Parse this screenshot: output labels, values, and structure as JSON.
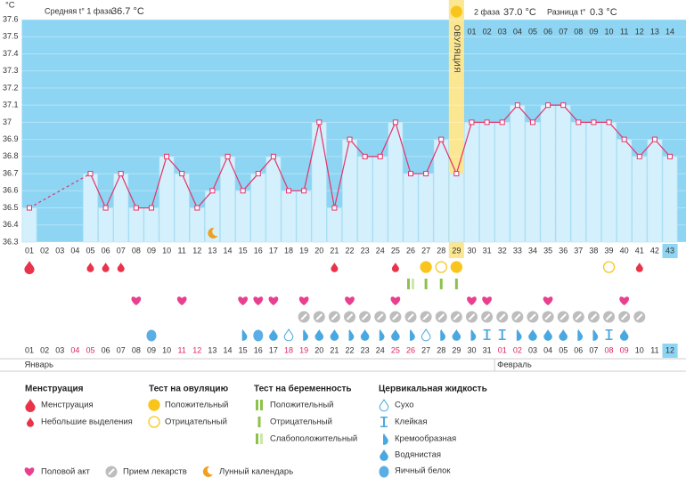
{
  "header": {
    "unit": "°C",
    "phase1_label": "Средняя t° 1 фаза",
    "phase1_value": "36.7 °C",
    "phase2_label": "2 фаза",
    "phase2_value": "37.0 °C",
    "diff_label": "Разница t°",
    "diff_value": "0.3 °C",
    "ovulation_label": "ОВУЛЯЦИЯ"
  },
  "chart_data": {
    "type": "line",
    "color": "#e5336a",
    "categories": [
      "01",
      "02",
      "03",
      "04",
      "05",
      "06",
      "07",
      "08",
      "09",
      "10",
      "11",
      "12",
      "13",
      "14",
      "15",
      "16",
      "17",
      "18",
      "19",
      "20",
      "21",
      "22",
      "23",
      "24",
      "25",
      "26",
      "27",
      "28",
      "29",
      "30",
      "31",
      "32",
      "33",
      "34",
      "35",
      "36",
      "37",
      "38",
      "39",
      "40",
      "41",
      "42",
      "43"
    ],
    "values": [
      36.5,
      null,
      null,
      null,
      36.7,
      36.5,
      36.7,
      36.5,
      36.5,
      36.8,
      36.7,
      36.5,
      36.6,
      36.8,
      36.6,
      36.7,
      36.8,
      36.6,
      36.6,
      37.0,
      36.5,
      36.9,
      36.8,
      36.8,
      37.0,
      36.7,
      36.7,
      36.9,
      36.7,
      37.0,
      37.0,
      37.0,
      37.1,
      37.0,
      37.1,
      37.1,
      37.0,
      37.0,
      37.0,
      36.9,
      36.8,
      36.9,
      36.8
    ],
    "ylim": [
      36.3,
      37.6
    ],
    "yticks": [
      37.6,
      37.5,
      37.4,
      37.3,
      37.2,
      37.1,
      37,
      36.9,
      36.8,
      36.7,
      36.6,
      36.5,
      36.4,
      36.3
    ],
    "grid": true
  },
  "ovulation_day": 29,
  "today": 43,
  "phase2_days": [
    "01",
    "02",
    "03",
    "04",
    "05",
    "06",
    "07",
    "08",
    "09",
    "10",
    "11",
    "12",
    "13",
    "14"
  ],
  "calendar": {
    "dates": [
      "01",
      "02",
      "03",
      "04",
      "05",
      "06",
      "07",
      "08",
      "09",
      "10",
      "11",
      "12",
      "13",
      "14",
      "15",
      "16",
      "17",
      "18",
      "19",
      "20",
      "21",
      "22",
      "23",
      "24",
      "25",
      "26",
      "27",
      "28",
      "29",
      "30",
      "31",
      "01",
      "02",
      "03",
      "04",
      "05",
      "06",
      "07",
      "08",
      "09",
      "10",
      "11",
      "12"
    ],
    "weekends": [
      3,
      4,
      10,
      11,
      17,
      18,
      24,
      25,
      31,
      32,
      38,
      39
    ],
    "weekend_color": "#e0245e",
    "months": [
      {
        "label": "Январь",
        "start": 1
      },
      {
        "label": "Февраль",
        "start": 32
      }
    ]
  },
  "markers": {
    "menstruation": [
      1
    ],
    "spotting": [
      5,
      6,
      7,
      21,
      25,
      41
    ],
    "ovulation_positive": [
      27,
      29
    ],
    "ovulation_negative": [
      28,
      39
    ],
    "pregnancy_positive": [],
    "pregnancy_negative": [
      27,
      28,
      29
    ],
    "pregnancy_weak": [
      26
    ],
    "sex": [
      8,
      11,
      15,
      16,
      17,
      19,
      22,
      25,
      30,
      31,
      35,
      40
    ],
    "medication": [
      19,
      20,
      21,
      22,
      23,
      24,
      25,
      26,
      27,
      28,
      29,
      30,
      31,
      32,
      33,
      34,
      35,
      36,
      37,
      38,
      39,
      40,
      41
    ],
    "cm_dry": [
      18,
      27
    ],
    "cm_sticky": [
      31,
      32,
      39
    ],
    "cm_creamy": [
      15,
      19,
      22,
      24,
      26,
      28,
      30,
      33,
      37,
      38
    ],
    "cm_watery": [
      17,
      20,
      21,
      23,
      25,
      29,
      34,
      35,
      36,
      40
    ],
    "cm_eggwhite": [
      9,
      16
    ],
    "moon": [
      13
    ]
  },
  "legend": [
    {
      "title": "Менструация",
      "items": [
        "Менструация",
        "Небольшие выделения"
      ]
    },
    {
      "title": "Тест на овуляцию",
      "items": [
        "Положительный",
        "Отрицательный"
      ]
    },
    {
      "title": "Тест на беременность",
      "items": [
        "Положительный",
        "Отрицательный",
        "Слабоположительный"
      ]
    },
    {
      "title": "Цервикальная жидкость",
      "items": [
        "Сухо",
        "Клейкая",
        "Кремообразная",
        "Водянистая",
        "Яичный белок"
      ]
    }
  ],
  "legend_other": [
    "Половой акт",
    "Прием лекарств",
    "Лунный календарь"
  ]
}
